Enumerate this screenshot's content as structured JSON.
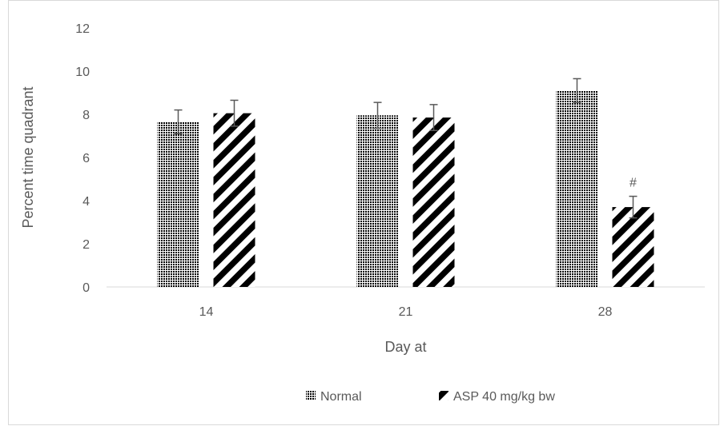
{
  "chart_data": {
    "type": "bar",
    "title": "",
    "xlabel": "Day at",
    "ylabel": "Percent time quadrant",
    "categories": [
      "14",
      "21",
      "28"
    ],
    "ylim": [
      0,
      12
    ],
    "yticks": [
      0,
      2,
      4,
      6,
      8,
      10,
      12
    ],
    "grid": false,
    "legend_position": "bottom",
    "series": [
      {
        "name": "Normal",
        "pattern": "dots",
        "values": [
          7.65,
          7.95,
          9.1
        ],
        "errors": [
          0.55,
          0.6,
          0.55
        ]
      },
      {
        "name": "ASP 40 mg/kg bw",
        "pattern": "diagonal-stripes",
        "values": [
          8.05,
          7.85,
          3.7
        ],
        "errors": [
          0.6,
          0.6,
          0.5
        ]
      }
    ],
    "annotations": [
      {
        "series": 1,
        "category": "28",
        "text": "#"
      }
    ],
    "colors": {
      "bar": "#000000",
      "axis": "#d9d9d9",
      "error_bar": "#595959",
      "text": "#595959"
    }
  }
}
